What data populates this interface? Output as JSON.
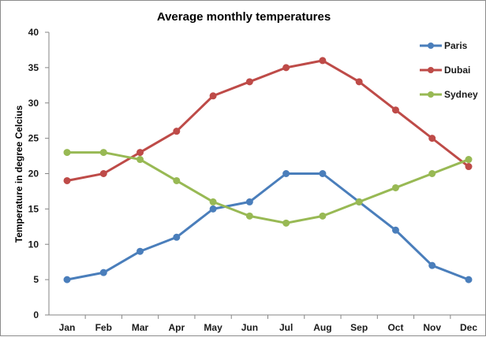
{
  "chart_data": {
    "type": "line",
    "title": "Average monthly temperatures",
    "xlabel": "",
    "ylabel": "Temperature in degree Celcius",
    "categories": [
      "Jan",
      "Feb",
      "Mar",
      "Apr",
      "May",
      "Jun",
      "Jul",
      "Aug",
      "Sep",
      "Oct",
      "Nov",
      "Dec"
    ],
    "ylim": [
      0,
      40
    ],
    "yticks": [
      0,
      5,
      10,
      15,
      20,
      25,
      30,
      35,
      40
    ],
    "grid": false,
    "legend_position": "top-right",
    "series": [
      {
        "name": "Paris",
        "color": "#4a7ebb",
        "values": [
          5,
          6,
          9,
          11,
          15,
          16,
          20,
          20,
          16,
          12,
          7,
          5
        ]
      },
      {
        "name": "Dubai",
        "color": "#be4b48",
        "values": [
          19,
          20,
          23,
          26,
          31,
          33,
          35,
          36,
          33,
          29,
          25,
          21
        ]
      },
      {
        "name": "Sydney",
        "color": "#98b954",
        "values": [
          23,
          23,
          22,
          19,
          16,
          14,
          13,
          14,
          16,
          18,
          20,
          22
        ]
      }
    ]
  }
}
